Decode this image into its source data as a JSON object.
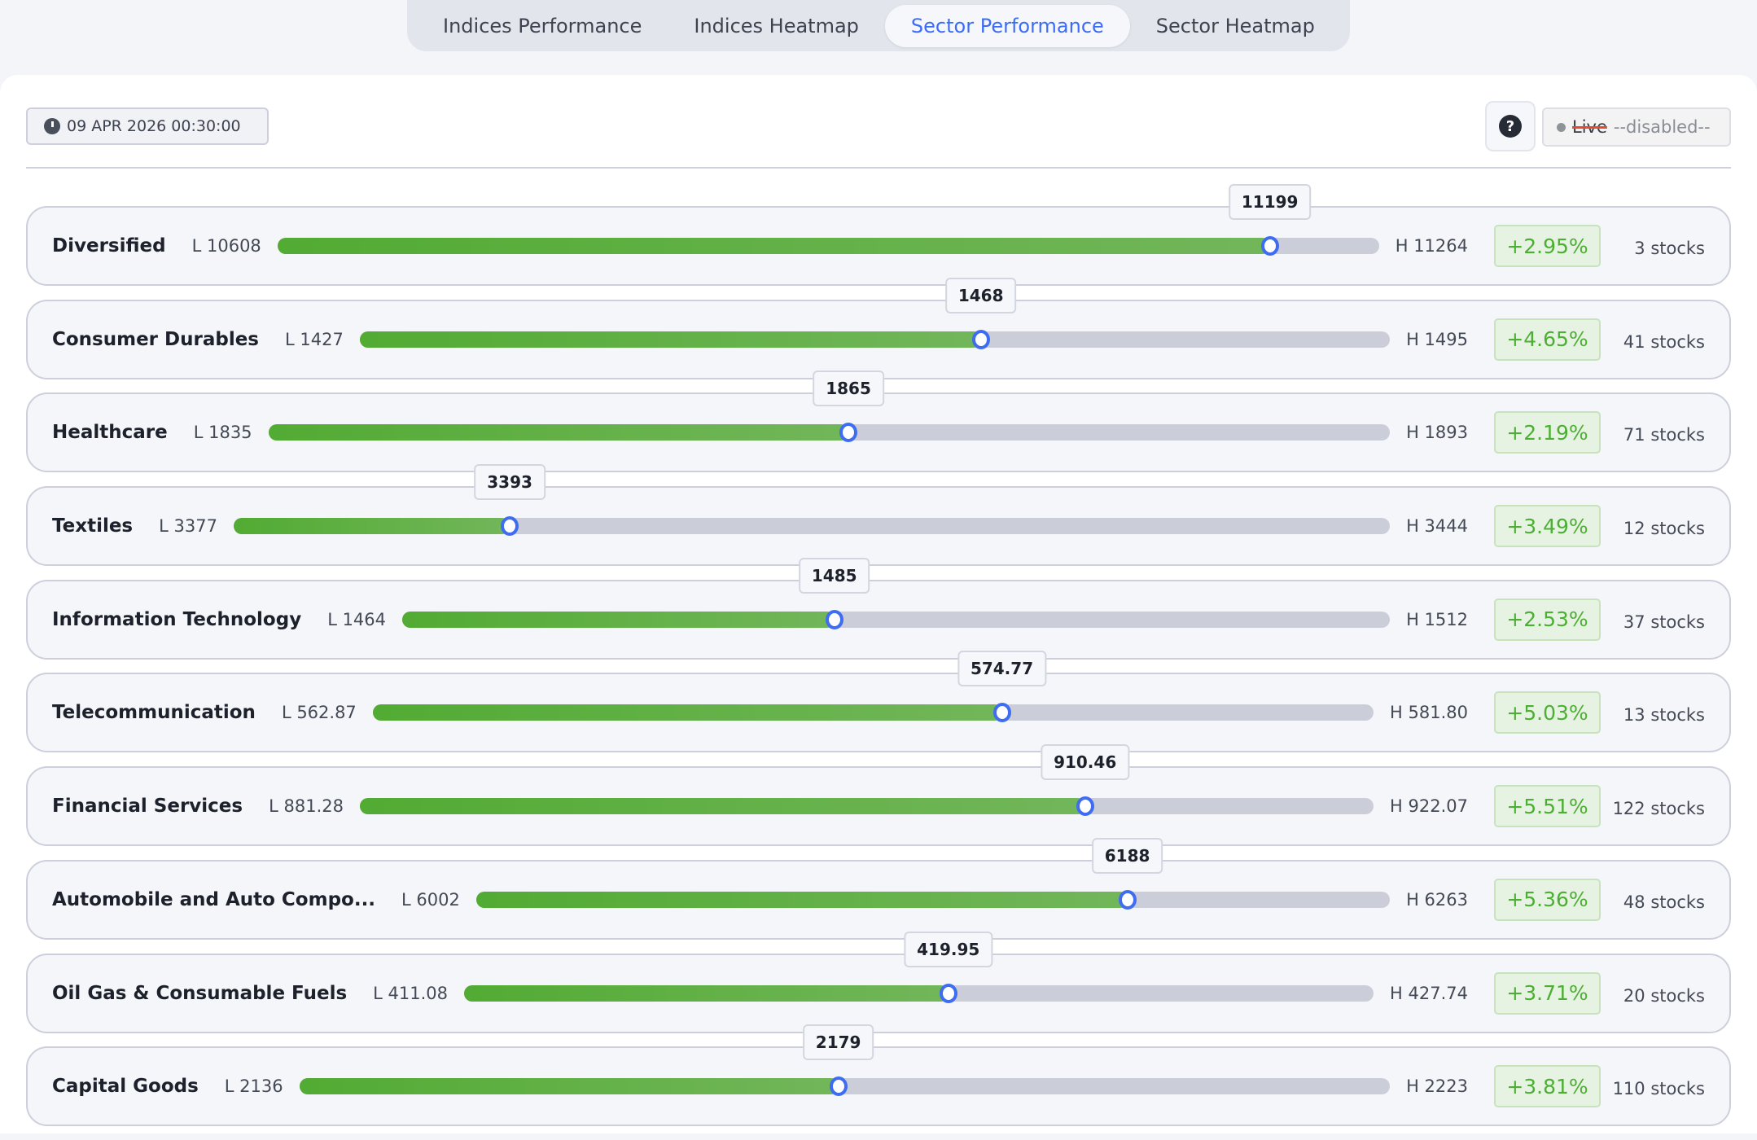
{
  "tabs": [
    {
      "label": "Indices Performance",
      "active": false
    },
    {
      "label": "Indices Heatmap",
      "active": false
    },
    {
      "label": "Sector Performance",
      "active": true
    },
    {
      "label": "Sector Heatmap",
      "active": false
    }
  ],
  "toolbar": {
    "timestamp": "09 APR 2026 00:30:00",
    "help_icon": "?",
    "live_label": "Live",
    "live_status": "--disabled--"
  },
  "colors": {
    "accent": "#3b6cf6",
    "positive": "#4caf33",
    "bar_fill": "#52ab33",
    "track": "#cbced9"
  },
  "sectors": [
    {
      "name": "Diversified",
      "low": "10608",
      "high": "11264",
      "current": "11199",
      "change": "+2.95%",
      "stocks": "3 stocks"
    },
    {
      "name": "Consumer Durables",
      "low": "1427",
      "high": "1495",
      "current": "1468",
      "change": "+4.65%",
      "stocks": "41 stocks"
    },
    {
      "name": "Healthcare",
      "low": "1835",
      "high": "1893",
      "current": "1865",
      "change": "+2.19%",
      "stocks": "71 stocks"
    },
    {
      "name": "Textiles",
      "low": "3377",
      "high": "3444",
      "current": "3393",
      "change": "+3.49%",
      "stocks": "12 stocks"
    },
    {
      "name": "Information Technology",
      "low": "1464",
      "high": "1512",
      "current": "1485",
      "change": "+2.53%",
      "stocks": "37 stocks"
    },
    {
      "name": "Telecommunication",
      "low": "562.87",
      "high": "581.80",
      "current": "574.77",
      "change": "+5.03%",
      "stocks": "13 stocks"
    },
    {
      "name": "Financial Services",
      "low": "881.28",
      "high": "922.07",
      "current": "910.46",
      "change": "+5.51%",
      "stocks": "122 stocks"
    },
    {
      "name": "Automobile and Auto Compo...",
      "low": "6002",
      "high": "6263",
      "current": "6188",
      "change": "+5.36%",
      "stocks": "48 stocks"
    },
    {
      "name": "Oil Gas & Consumable Fuels",
      "low": "411.08",
      "high": "427.74",
      "current": "419.95",
      "change": "+3.71%",
      "stocks": "20 stocks"
    },
    {
      "name": "Capital Goods",
      "low": "2136",
      "high": "2223",
      "current": "2179",
      "change": "+3.81%",
      "stocks": "110 stocks"
    }
  ]
}
